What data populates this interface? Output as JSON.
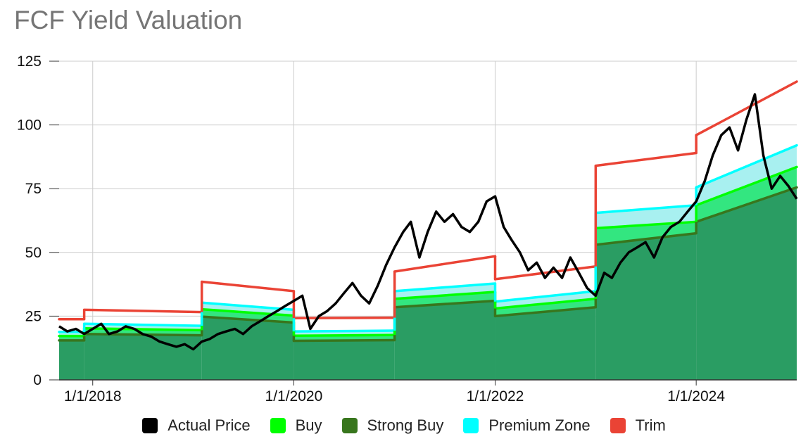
{
  "chart_data": {
    "type": "area",
    "title": "FCF Yield Valuation",
    "xlabel": "",
    "ylabel": "",
    "x_range": [
      "2017-09-01",
      "2024-12-31"
    ],
    "ylim": [
      0,
      125
    ],
    "y_ticks": [
      0,
      25,
      50,
      75,
      100,
      125
    ],
    "x_ticks": [
      "2018-01-01",
      "2020-01-01",
      "2022-01-01",
      "2024-01-01"
    ],
    "x_tick_labels": [
      "1/1/2018",
      "1/1/2020",
      "1/1/2022",
      "1/1/2024"
    ],
    "grid": true,
    "legend_position": "bottom",
    "colors": {
      "actual": "#000000",
      "buy": "#00ff00",
      "strong_buy": "#38761d",
      "premium": "#00ffff",
      "trim": "#ea4335",
      "strong_buy_fill": "#2a9d63",
      "buy_fill": "#33e680",
      "premium_fill": "#a8f0f0"
    },
    "band_segments": [
      {
        "start": "2017-09-01",
        "end": "2017-12-01",
        "strong_buy": [
          15.5,
          15.5
        ],
        "buy": [
          17.2,
          17.2
        ],
        "premium": [
          18.8,
          18.8
        ],
        "trim": [
          23.8,
          23.8
        ]
      },
      {
        "start": "2017-12-01",
        "end": "2019-02-01",
        "strong_buy": [
          18.0,
          17.5
        ],
        "buy": [
          20.2,
          19.5
        ],
        "premium": [
          22.0,
          21.2
        ],
        "trim": [
          27.5,
          26.6
        ]
      },
      {
        "start": "2019-02-01",
        "end": "2020-01-01",
        "strong_buy": [
          24.8,
          22.5
        ],
        "buy": [
          27.7,
          25.2
        ],
        "premium": [
          30.3,
          27.5
        ],
        "trim": [
          38.5,
          34.8
        ]
      },
      {
        "start": "2020-01-01",
        "end": "2021-01-01",
        "strong_buy": [
          15.3,
          15.6
        ],
        "buy": [
          17.3,
          17.6
        ],
        "premium": [
          19.0,
          19.3
        ],
        "trim": [
          24.2,
          24.4
        ]
      },
      {
        "start": "2021-01-01",
        "end": "2022-01-01",
        "strong_buy": [
          28.5,
          31.0
        ],
        "buy": [
          31.8,
          34.5
        ],
        "premium": [
          34.8,
          37.8
        ],
        "trim": [
          42.5,
          48.5
        ]
      },
      {
        "start": "2022-01-01",
        "end": "2023-01-01",
        "strong_buy": [
          25.0,
          28.5
        ],
        "buy": [
          28.0,
          31.8
        ],
        "premium": [
          30.7,
          34.8
        ],
        "trim": [
          39.5,
          44.5
        ]
      },
      {
        "start": "2023-01-01",
        "end": "2024-01-01",
        "strong_buy": [
          53.0,
          57.5
        ],
        "buy": [
          59.5,
          62.0
        ],
        "premium": [
          65.5,
          68.5
        ],
        "trim": [
          84.0,
          89.0
        ]
      },
      {
        "start": "2024-01-01",
        "end": "2024-12-31",
        "strong_buy": [
          62.0,
          75.5
        ],
        "buy": [
          68.5,
          83.5
        ],
        "premium": [
          75.5,
          92.0
        ],
        "trim": [
          96.0,
          117.0
        ]
      }
    ],
    "series": [
      {
        "name": "Actual Price",
        "points": [
          [
            "2017-09-01",
            21
          ],
          [
            "2017-10-01",
            19
          ],
          [
            "2017-11-01",
            20
          ],
          [
            "2017-12-01",
            18
          ],
          [
            "2018-01-01",
            20
          ],
          [
            "2018-02-01",
            22
          ],
          [
            "2018-03-01",
            18
          ],
          [
            "2018-04-01",
            19
          ],
          [
            "2018-05-01",
            21
          ],
          [
            "2018-06-01",
            20
          ],
          [
            "2018-07-01",
            18
          ],
          [
            "2018-08-01",
            17
          ],
          [
            "2018-09-01",
            15
          ],
          [
            "2018-10-01",
            14
          ],
          [
            "2018-11-01",
            13
          ],
          [
            "2018-12-01",
            14
          ],
          [
            "2019-01-01",
            12
          ],
          [
            "2019-02-01",
            15
          ],
          [
            "2019-03-01",
            16
          ],
          [
            "2019-04-01",
            18
          ],
          [
            "2019-05-01",
            19
          ],
          [
            "2019-06-01",
            20
          ],
          [
            "2019-07-01",
            18
          ],
          [
            "2019-08-01",
            21
          ],
          [
            "2019-09-01",
            23
          ],
          [
            "2019-10-01",
            25
          ],
          [
            "2019-11-01",
            27
          ],
          [
            "2019-12-01",
            29
          ],
          [
            "2020-01-01",
            31
          ],
          [
            "2020-02-01",
            33
          ],
          [
            "2020-03-01",
            20
          ],
          [
            "2020-04-01",
            25
          ],
          [
            "2020-05-01",
            27
          ],
          [
            "2020-06-01",
            30
          ],
          [
            "2020-07-01",
            34
          ],
          [
            "2020-08-01",
            38
          ],
          [
            "2020-09-01",
            33
          ],
          [
            "2020-10-01",
            30
          ],
          [
            "2020-11-01",
            37
          ],
          [
            "2020-12-01",
            45
          ],
          [
            "2021-01-01",
            52
          ],
          [
            "2021-02-01",
            58
          ],
          [
            "2021-03-01",
            62
          ],
          [
            "2021-04-01",
            48
          ],
          [
            "2021-05-01",
            58
          ],
          [
            "2021-06-01",
            66
          ],
          [
            "2021-07-01",
            62
          ],
          [
            "2021-08-01",
            65
          ],
          [
            "2021-09-01",
            60
          ],
          [
            "2021-10-01",
            58
          ],
          [
            "2021-11-01",
            62
          ],
          [
            "2021-12-01",
            70
          ],
          [
            "2022-01-01",
            72
          ],
          [
            "2022-02-01",
            60
          ],
          [
            "2022-03-01",
            55
          ],
          [
            "2022-04-01",
            50
          ],
          [
            "2022-05-01",
            43
          ],
          [
            "2022-06-01",
            46
          ],
          [
            "2022-07-01",
            40
          ],
          [
            "2022-08-01",
            44
          ],
          [
            "2022-09-01",
            40
          ],
          [
            "2022-10-01",
            48
          ],
          [
            "2022-11-01",
            42
          ],
          [
            "2022-12-01",
            36
          ],
          [
            "2023-01-01",
            33
          ],
          [
            "2023-02-01",
            42
          ],
          [
            "2023-03-01",
            40
          ],
          [
            "2023-04-01",
            46
          ],
          [
            "2023-05-01",
            50
          ],
          [
            "2023-06-01",
            52
          ],
          [
            "2023-07-01",
            54
          ],
          [
            "2023-08-01",
            48
          ],
          [
            "2023-09-01",
            56
          ],
          [
            "2023-10-01",
            60
          ],
          [
            "2023-11-01",
            62
          ],
          [
            "2023-12-01",
            66
          ],
          [
            "2024-01-01",
            70
          ],
          [
            "2024-02-01",
            78
          ],
          [
            "2024-03-01",
            88
          ],
          [
            "2024-04-01",
            96
          ],
          [
            "2024-05-01",
            99
          ],
          [
            "2024-06-01",
            90
          ],
          [
            "2024-07-01",
            102
          ],
          [
            "2024-08-01",
            112
          ],
          [
            "2024-09-01",
            88
          ],
          [
            "2024-10-01",
            75
          ],
          [
            "2024-11-01",
            80
          ],
          [
            "2024-12-01",
            76
          ],
          [
            "2024-12-31",
            71
          ]
        ]
      },
      {
        "name": "Buy"
      },
      {
        "name": "Strong Buy"
      },
      {
        "name": "Premium Zone"
      },
      {
        "name": "Trim"
      }
    ]
  },
  "legend": {
    "actual": "Actual Price",
    "buy": "Buy",
    "strong_buy": "Strong Buy",
    "premium": "Premium Zone",
    "trim": "Trim"
  }
}
